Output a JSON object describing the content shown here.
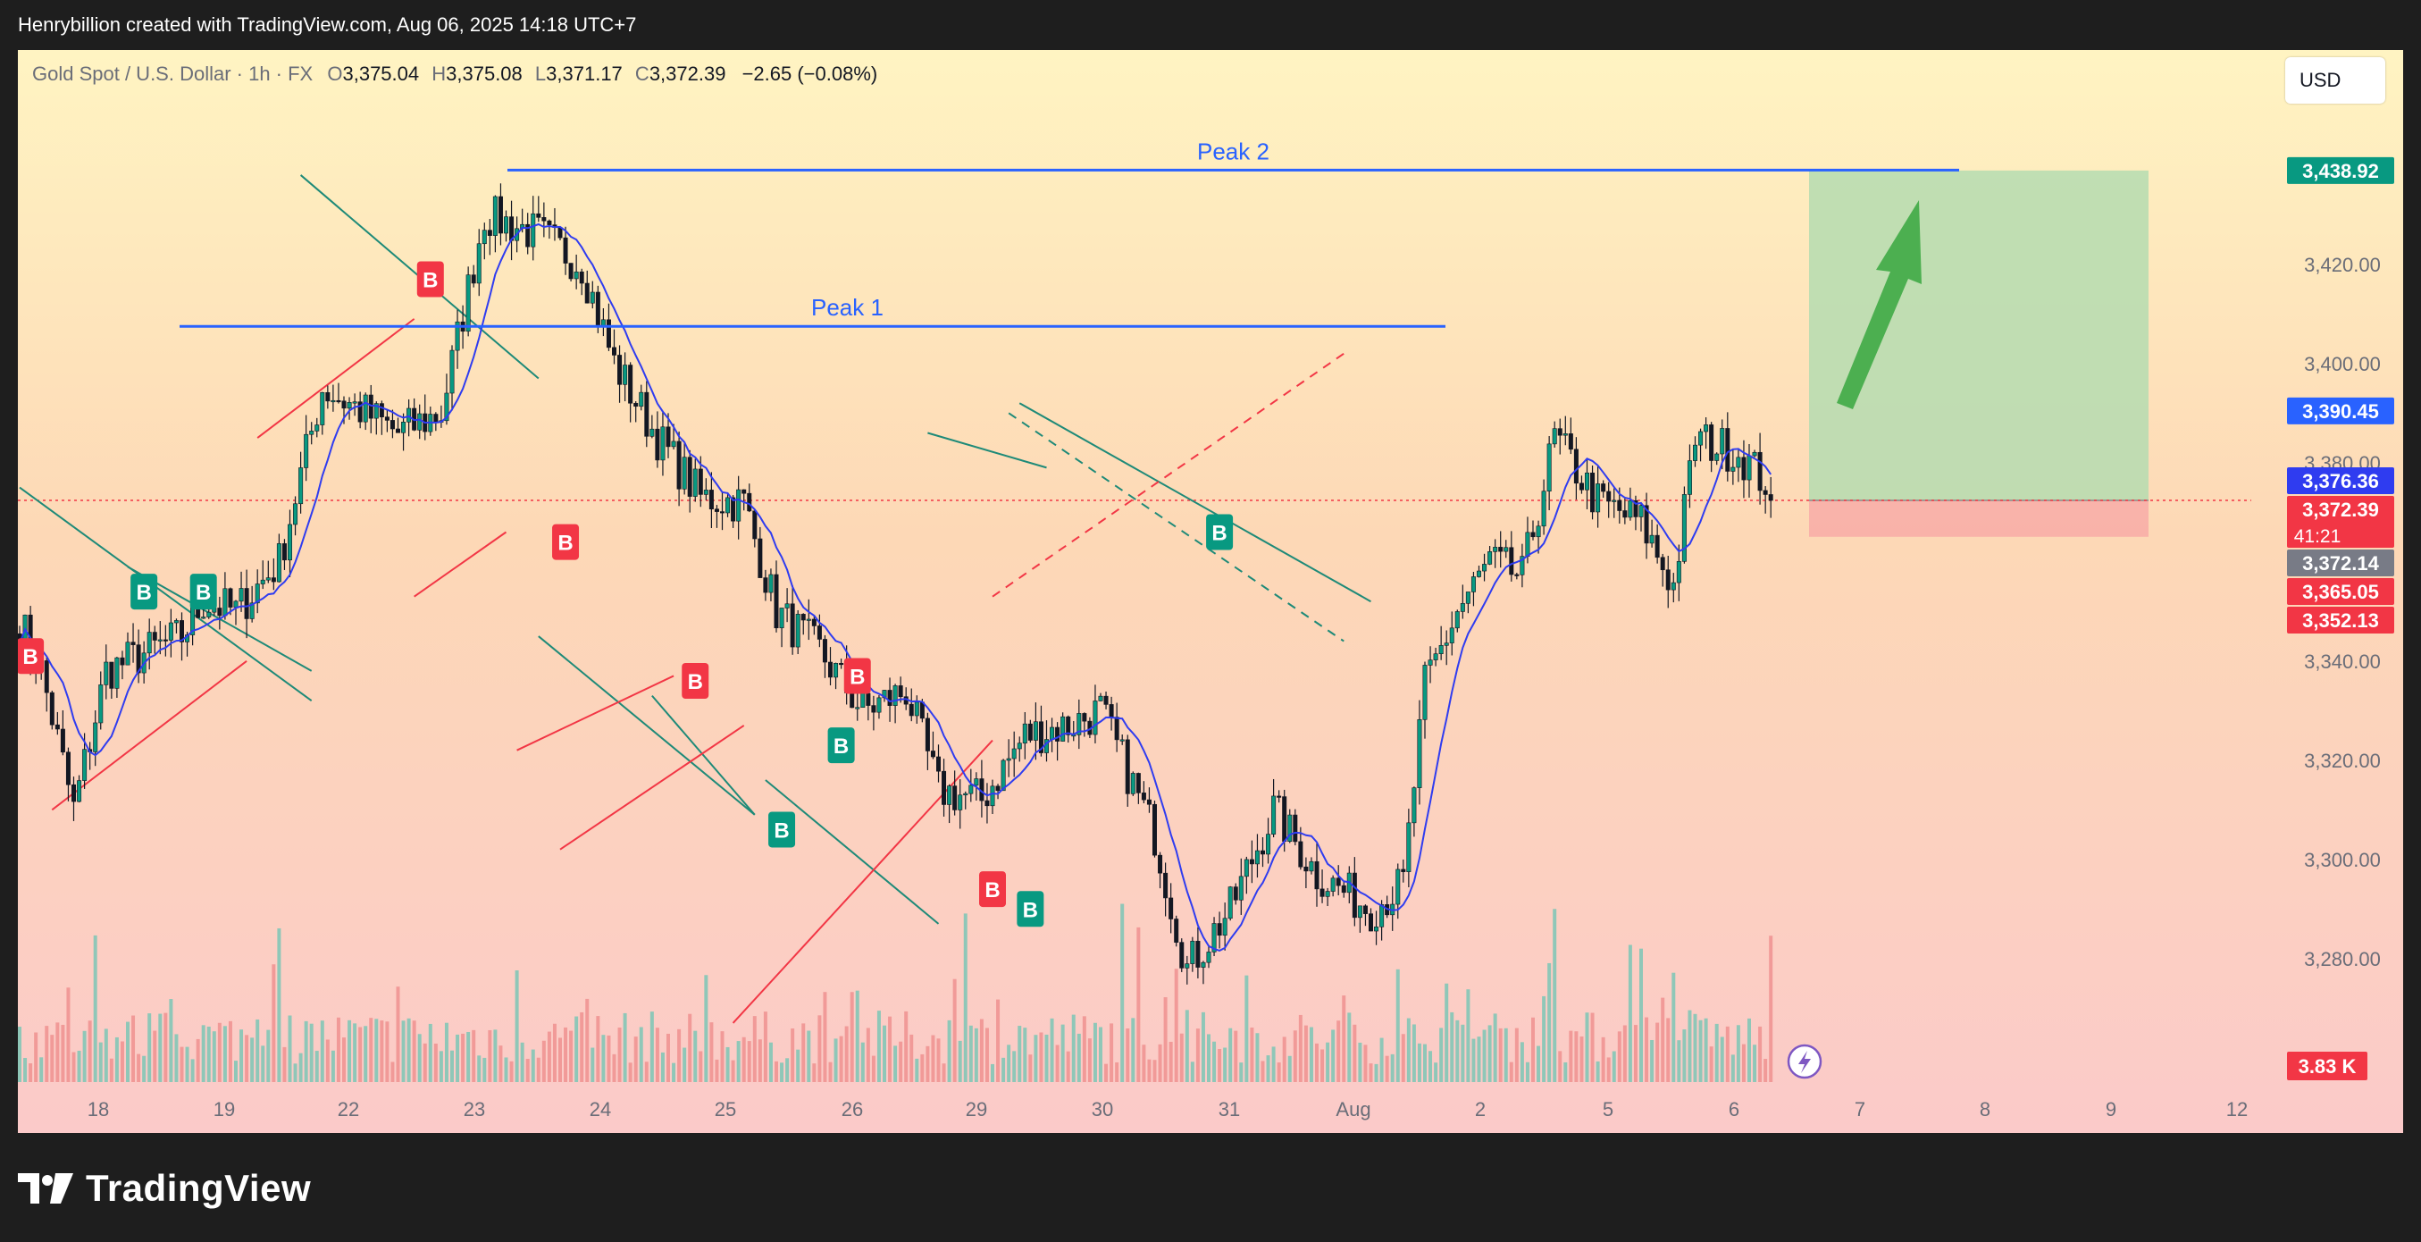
{
  "header": {
    "credit": "Henrybillion created with TradingView.com, Aug 06, 2025 14:18 UTC+7"
  },
  "legend": {
    "symbol": "Gold Spot / U.S. Dollar · 1h · FX",
    "open_label": "O",
    "open": "3,375.04",
    "high_label": "H",
    "high": "3,375.08",
    "low_label": "L",
    "low": "3,371.17",
    "close_label": "C",
    "close": "3,372.39",
    "change": "−2.65 (−0.08%)"
  },
  "currency_button": "USD",
  "footer": {
    "brand": "TradingView"
  },
  "colors": {
    "bull": "#089981",
    "bear": "#f23645",
    "ma": "#2f3cf0",
    "trend_green": "#1e8a78",
    "trend_red": "#f23645",
    "level_blue": "#2962ff",
    "target_zone": "#b5dcb0",
    "stop_zone": "#f7a9a6",
    "arrow": "#4caf50"
  },
  "chart_data": {
    "type": "candlestick",
    "symbol": "XAUUSD",
    "timeframe": "1h",
    "ylim": [
      3265,
      3447
    ],
    "y_ticks": [
      3280,
      3300,
      3320,
      3340,
      3360,
      3380,
      3400,
      3420
    ],
    "y_tick_labels": [
      "3,280.00",
      "3,300.00",
      "3,320.00",
      "3,340.00",
      "3,360.00",
      "3,380.00",
      "3,400.00",
      "3,420.00"
    ],
    "x_tick_labels": [
      "18",
      "19",
      "22",
      "23",
      "24",
      "25",
      "26",
      "29",
      "30",
      "31",
      "Aug",
      "2",
      "5",
      "6",
      "7",
      "8",
      "9",
      "12"
    ],
    "close_path": [
      [
        0,
        3348
      ],
      [
        4,
        3338
      ],
      [
        10,
        3310
      ],
      [
        16,
        3338
      ],
      [
        24,
        3342
      ],
      [
        30,
        3345
      ],
      [
        34,
        3352
      ],
      [
        40,
        3350
      ],
      [
        48,
        3360
      ],
      [
        56,
        3395
      ],
      [
        64,
        3390
      ],
      [
        70,
        3386
      ],
      [
        78,
        3390
      ],
      [
        86,
        3430
      ],
      [
        96,
        3426
      ],
      [
        104,
        3420
      ],
      [
        110,
        3400
      ],
      [
        118,
        3385
      ],
      [
        126,
        3373
      ],
      [
        134,
        3372
      ],
      [
        140,
        3350
      ],
      [
        148,
        3342
      ],
      [
        156,
        3330
      ],
      [
        164,
        3334
      ],
      [
        170,
        3314
      ],
      [
        178,
        3312
      ],
      [
        186,
        3325
      ],
      [
        194,
        3327
      ],
      [
        200,
        3330
      ],
      [
        204,
        3320
      ],
      [
        210,
        3305
      ],
      [
        216,
        3278
      ],
      [
        224,
        3290
      ],
      [
        232,
        3310
      ],
      [
        240,
        3297
      ],
      [
        250,
        3290
      ],
      [
        256,
        3295
      ],
      [
        260,
        3335
      ],
      [
        266,
        3350
      ],
      [
        272,
        3360
      ],
      [
        278,
        3357
      ],
      [
        284,
        3385
      ],
      [
        292,
        3372
      ],
      [
        300,
        3368
      ],
      [
        306,
        3355
      ],
      [
        310,
        3385
      ],
      [
        318,
        3382
      ],
      [
        324,
        3375
      ]
    ],
    "annotations": {
      "peak1": {
        "label": "Peak 1",
        "price": 3407.5
      },
      "peak2": {
        "label": "Peak 2",
        "price": 3439
      },
      "signals": [
        {
          "type": "S",
          "label": "B",
          "bar": 2,
          "price": 3341
        },
        {
          "type": "B",
          "label": "B",
          "bar": 23,
          "price": 3354
        },
        {
          "type": "B",
          "label": "B",
          "bar": 34,
          "price": 3354
        },
        {
          "type": "S",
          "label": "B",
          "bar": 76,
          "price": 3417
        },
        {
          "type": "S",
          "label": "B",
          "bar": 101,
          "price": 3364
        },
        {
          "type": "S",
          "label": "B",
          "bar": 125,
          "price": 3336
        },
        {
          "type": "B",
          "label": "B",
          "bar": 141,
          "price": 3306
        },
        {
          "type": "B",
          "label": "B",
          "bar": 152,
          "price": 3323
        },
        {
          "type": "S",
          "label": "B",
          "bar": 155,
          "price": 3337
        },
        {
          "type": "S",
          "label": "B",
          "bar": 180,
          "price": 3294
        },
        {
          "type": "B",
          "label": "B",
          "bar": 187,
          "price": 3290
        },
        {
          "type": "B",
          "label": "B",
          "bar": 222,
          "price": 3366
        }
      ],
      "position": {
        "entry": 3372.39,
        "target": 3438.92,
        "stop": 3365.05
      }
    },
    "price_labels": [
      {
        "price": 3438.92,
        "text": "3,438.92",
        "color": "#089981"
      },
      {
        "price": 3390.45,
        "text": "3,390.45",
        "color": "#2962ff"
      },
      {
        "price": 3376.36,
        "text": "3,376.36",
        "color": "#2f3cf0"
      },
      {
        "price": 3372.39,
        "text": "3,372.39",
        "sub": "41:21",
        "color": "#f23645"
      },
      {
        "price": 3372.14,
        "text": "3,372.14",
        "color": "#787b86"
      },
      {
        "price": 3365.05,
        "text": "3,365.05",
        "color": "#f23645"
      },
      {
        "price": 3352.13,
        "text": "3,352.13",
        "color": "#f23645"
      }
    ],
    "volume_label": "3.83 K"
  }
}
